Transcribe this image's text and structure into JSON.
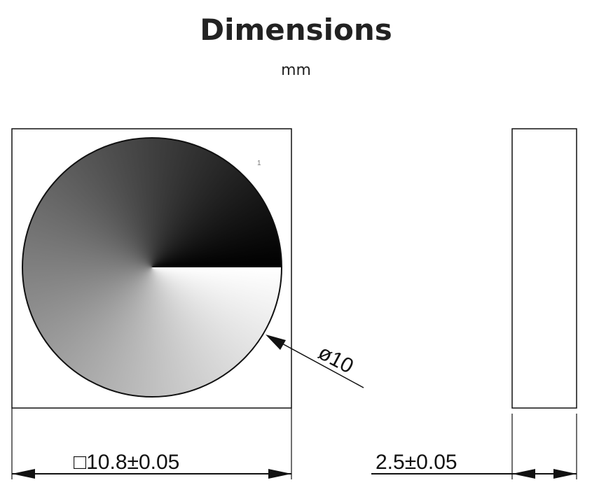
{
  "header": {
    "title": "Dimensions",
    "unit": "mm"
  },
  "drawing": {
    "pin_marker": "1",
    "diameter_label": "ø10",
    "width_label": "□10.8±0.05",
    "thickness_label": "2.5±0.05"
  }
}
